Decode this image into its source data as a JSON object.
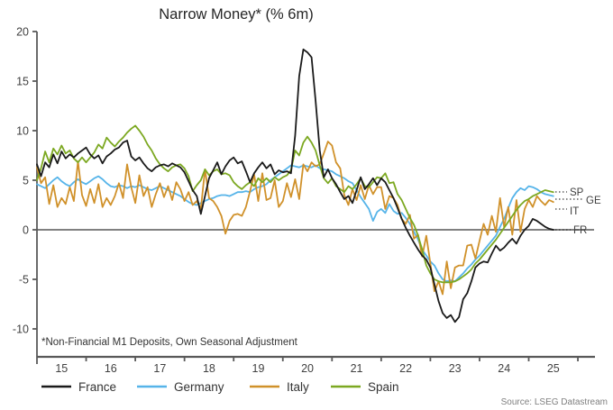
{
  "source": "Source: LSEG Datastream",
  "chart_data": {
    "type": "line",
    "title": "Narrow Money* (% 6m)",
    "footnote": "*Non-Financial M1 Deposits, Own Seasonal Adjustment",
    "x_axis": {
      "start_year": 2015,
      "points_per_year": 12,
      "tick_years": [
        2016,
        2017,
        2018,
        2019,
        2020,
        2021,
        2022,
        2023,
        2024,
        2025,
        2026
      ],
      "labels": [
        "15",
        "16",
        "17",
        "18",
        "19",
        "20",
        "21",
        "22",
        "23",
        "24",
        "25"
      ]
    },
    "y_axis": {
      "ticks": [
        20,
        15,
        10,
        5,
        0,
        -5,
        -10
      ],
      "range": [
        -12.8,
        20
      ]
    },
    "grid": "zero-line-only",
    "legend_position": "bottom",
    "colors": {
      "axis": "#595959",
      "zero_line": "#808080",
      "text": "#404040",
      "muted": "#7f7f7f"
    },
    "series": [
      {
        "name": "Germany",
        "end_label": "GE",
        "color": "#56b4e9",
        "values": [
          4.6,
          4.4,
          4.2,
          4.6,
          5.0,
          5.3,
          4.9,
          4.6,
          4.4,
          4.8,
          5.1,
          4.8,
          4.6,
          4.9,
          5.2,
          5.4,
          5.1,
          4.7,
          4.4,
          4.3,
          4.5,
          4.4,
          4.2,
          4.4,
          4.3,
          4.5,
          4.3,
          4.1,
          4.0,
          4.2,
          4.4,
          4.2,
          4.0,
          3.8,
          3.6,
          3.4,
          3.1,
          2.8,
          2.6,
          2.5,
          2.7,
          2.9,
          3.1,
          3.2,
          3.4,
          3.5,
          3.5,
          3.4,
          3.6,
          3.8,
          3.8,
          3.9,
          3.8,
          4.1,
          4.3,
          4.4,
          4.6,
          5.0,
          5.3,
          5.6,
          5.9,
          6.2,
          6.5,
          6.4,
          6.3,
          6.5,
          6.4,
          6.3,
          6.5,
          6.2,
          6.1,
          6.0,
          5.9,
          5.6,
          5.4,
          5.2,
          4.9,
          4.7,
          4.0,
          3.3,
          2.7,
          2.1,
          0.9,
          1.8,
          2.1,
          1.7,
          2.6,
          1.9,
          1.6,
          1.7,
          1.2,
          0.6,
          -0.2,
          -1.0,
          -2.0,
          -2.6,
          -3.2,
          -3.6,
          -4.4,
          -5.0,
          -5.2,
          -5.1,
          -5.2,
          -4.8,
          -4.4,
          -3.9,
          -3.5,
          -3.0,
          -2.6,
          -2.1,
          -1.6,
          -1.1,
          -0.6,
          0.3,
          1.1,
          2.2,
          3.2,
          3.8,
          4.2,
          4.0,
          4.4,
          4.3,
          4.1,
          3.8,
          3.6,
          3.5,
          3.4
        ]
      },
      {
        "name": "Italy",
        "end_label": "IT",
        "color": "#d0912a",
        "values": [
          6.3,
          4.7,
          5.3,
          2.6,
          4.5,
          2.3,
          3.2,
          2.6,
          4.3,
          2.9,
          6.9,
          3.5,
          2.4,
          4.1,
          2.7,
          4.6,
          2.3,
          3.2,
          2.5,
          3.4,
          4.7,
          3.2,
          6.6,
          4.3,
          2.7,
          5.5,
          3.4,
          4.3,
          2.3,
          3.6,
          4.7,
          3.3,
          4.4,
          3.0,
          4.8,
          4.1,
          2.9,
          3.8,
          2.5,
          2.9,
          2.1,
          6.1,
          3.2,
          2.9,
          2.3,
          1.4,
          -0.4,
          0.9,
          1.5,
          1.6,
          1.4,
          2.3,
          3.9,
          5.6,
          2.9,
          5.7,
          3.0,
          3.2,
          5.0,
          2.3,
          2.9,
          4.7,
          3.3,
          5.1,
          3.1,
          6.6,
          5.9,
          6.8,
          6.4,
          6.6,
          7.7,
          8.9,
          8.5,
          6.8,
          6.2,
          3.5,
          2.5,
          4.1,
          3.0,
          4.5,
          3.1,
          4.5,
          3.6,
          4.3,
          4.3,
          2.1,
          3.4,
          3.2,
          2.5,
          1.1,
          0.6,
          1.5,
          -0.9,
          -0.5,
          -2.7,
          -0.6,
          -3.4,
          -6.2,
          -5.2,
          -6.5,
          -3.2,
          -5.9,
          -3.8,
          -3.6,
          -3.6,
          -1.6,
          -1.5,
          -2.9,
          -1.1,
          0.6,
          -0.5,
          1.4,
          -0.2,
          3.2,
          0.3,
          2.3,
          -0.5,
          3.0,
          -0.2,
          2.1,
          3.0,
          2.3,
          3.4,
          2.9,
          2.5,
          3.0,
          2.8
        ]
      },
      {
        "name": "Spain",
        "end_label": "SP",
        "color": "#7ca821",
        "values": [
          5.0,
          6.2,
          7.9,
          6.8,
          8.2,
          7.6,
          8.5,
          7.7,
          8.0,
          7.2,
          6.8,
          7.3,
          6.8,
          7.3,
          7.8,
          8.6,
          8.2,
          9.3,
          8.8,
          8.4,
          8.9,
          9.3,
          9.8,
          10.2,
          10.5,
          10.0,
          9.4,
          8.6,
          8.0,
          7.2,
          6.6,
          6.2,
          5.9,
          6.3,
          6.5,
          6.6,
          6.2,
          5.4,
          3.9,
          4.5,
          5.0,
          6.1,
          5.5,
          5.9,
          6.1,
          5.6,
          5.7,
          5.5,
          4.8,
          4.4,
          4.1,
          4.5,
          4.8,
          4.4,
          5.2,
          4.8,
          5.2,
          4.8,
          5.3,
          5.0,
          5.3,
          5.5,
          6.0,
          8.0,
          7.5,
          8.8,
          9.4,
          8.8,
          8.0,
          6.5,
          5.2,
          4.7,
          5.2,
          4.4,
          4.1,
          3.8,
          4.4,
          4.1,
          4.6,
          5.2,
          4.4,
          4.3,
          4.8,
          5.3,
          5.2,
          5.7,
          4.7,
          4.8,
          3.6,
          3.0,
          2.1,
          1.2,
          0.5,
          -0.6,
          -2.0,
          -3.6,
          -4.4,
          -5.0,
          -5.2,
          -5.3,
          -5.3,
          -5.3,
          -5.2,
          -5.0,
          -4.7,
          -4.4,
          -4.0,
          -3.4,
          -3.0,
          -2.5,
          -2.0,
          -1.5,
          -1.0,
          -0.4,
          0.2,
          0.8,
          1.4,
          2.0,
          2.5,
          2.9,
          3.1,
          3.4,
          3.6,
          3.8,
          4.0,
          3.9,
          3.8
        ]
      },
      {
        "name": "France",
        "end_label": "FR",
        "color": "#1a1a1a",
        "values": [
          6.6,
          5.4,
          6.8,
          6.3,
          7.6,
          6.7,
          7.9,
          7.2,
          7.6,
          7.3,
          7.7,
          8.0,
          8.3,
          7.6,
          7.2,
          7.5,
          6.7,
          7.4,
          7.7,
          8.1,
          8.3,
          8.8,
          9.0,
          7.4,
          7.0,
          7.3,
          6.7,
          6.2,
          5.9,
          6.3,
          6.5,
          6.6,
          6.4,
          6.7,
          6.5,
          6.3,
          5.8,
          4.9,
          4.0,
          3.4,
          1.6,
          3.4,
          5.2,
          6.0,
          6.8,
          5.6,
          6.4,
          7.0,
          7.3,
          6.7,
          6.9,
          5.9,
          4.8,
          5.7,
          6.3,
          6.8,
          6.2,
          6.6,
          5.6,
          6.0,
          5.8,
          5.9,
          5.7,
          9.5,
          15.5,
          18.2,
          17.9,
          17.4,
          13.0,
          8.0,
          5.3,
          6.1,
          5.2,
          4.6,
          3.8,
          3.1,
          3.4,
          2.7,
          4.0,
          5.3,
          4.1,
          4.6,
          5.2,
          4.5,
          5.2,
          4.8,
          4.0,
          3.2,
          2.2,
          1.1,
          0.2,
          -0.6,
          -1.3,
          -2.0,
          -2.6,
          -3.0,
          -3.8,
          -5.5,
          -7.2,
          -8.4,
          -8.9,
          -8.6,
          -9.3,
          -8.8,
          -7.0,
          -6.4,
          -5.2,
          -3.8,
          -3.4,
          -3.2,
          -3.3,
          -2.4,
          -1.6,
          -2.1,
          -1.8,
          -1.3,
          -0.9,
          -1.4,
          -0.6,
          0.0,
          0.4,
          1.1,
          0.9,
          0.6,
          0.3,
          0.1,
          0.0
        ]
      }
    ]
  }
}
